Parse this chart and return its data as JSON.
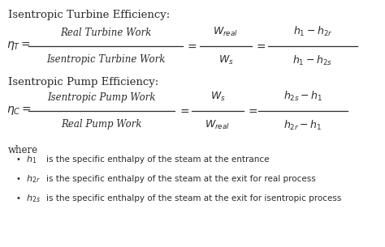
{
  "bg_color": "#ffffff",
  "text_color": "#2b2b2b",
  "title1": "Isentropic Turbine Efficiency:",
  "title2": "Isentropic Pump Efficiency:",
  "where_label": "where",
  "bullet1_math": "$h_1$",
  "bullet1_text": "is the specific enthalpy of the steam at the entrance",
  "bullet2_math": "$h_{2r}$",
  "bullet2_text": "is the specific enthalpy of the steam at the exit for real process",
  "bullet3_math": "$h_{2s}$",
  "bullet3_text": "is the specific enthalpy of the steam at the exit for isentropic process"
}
